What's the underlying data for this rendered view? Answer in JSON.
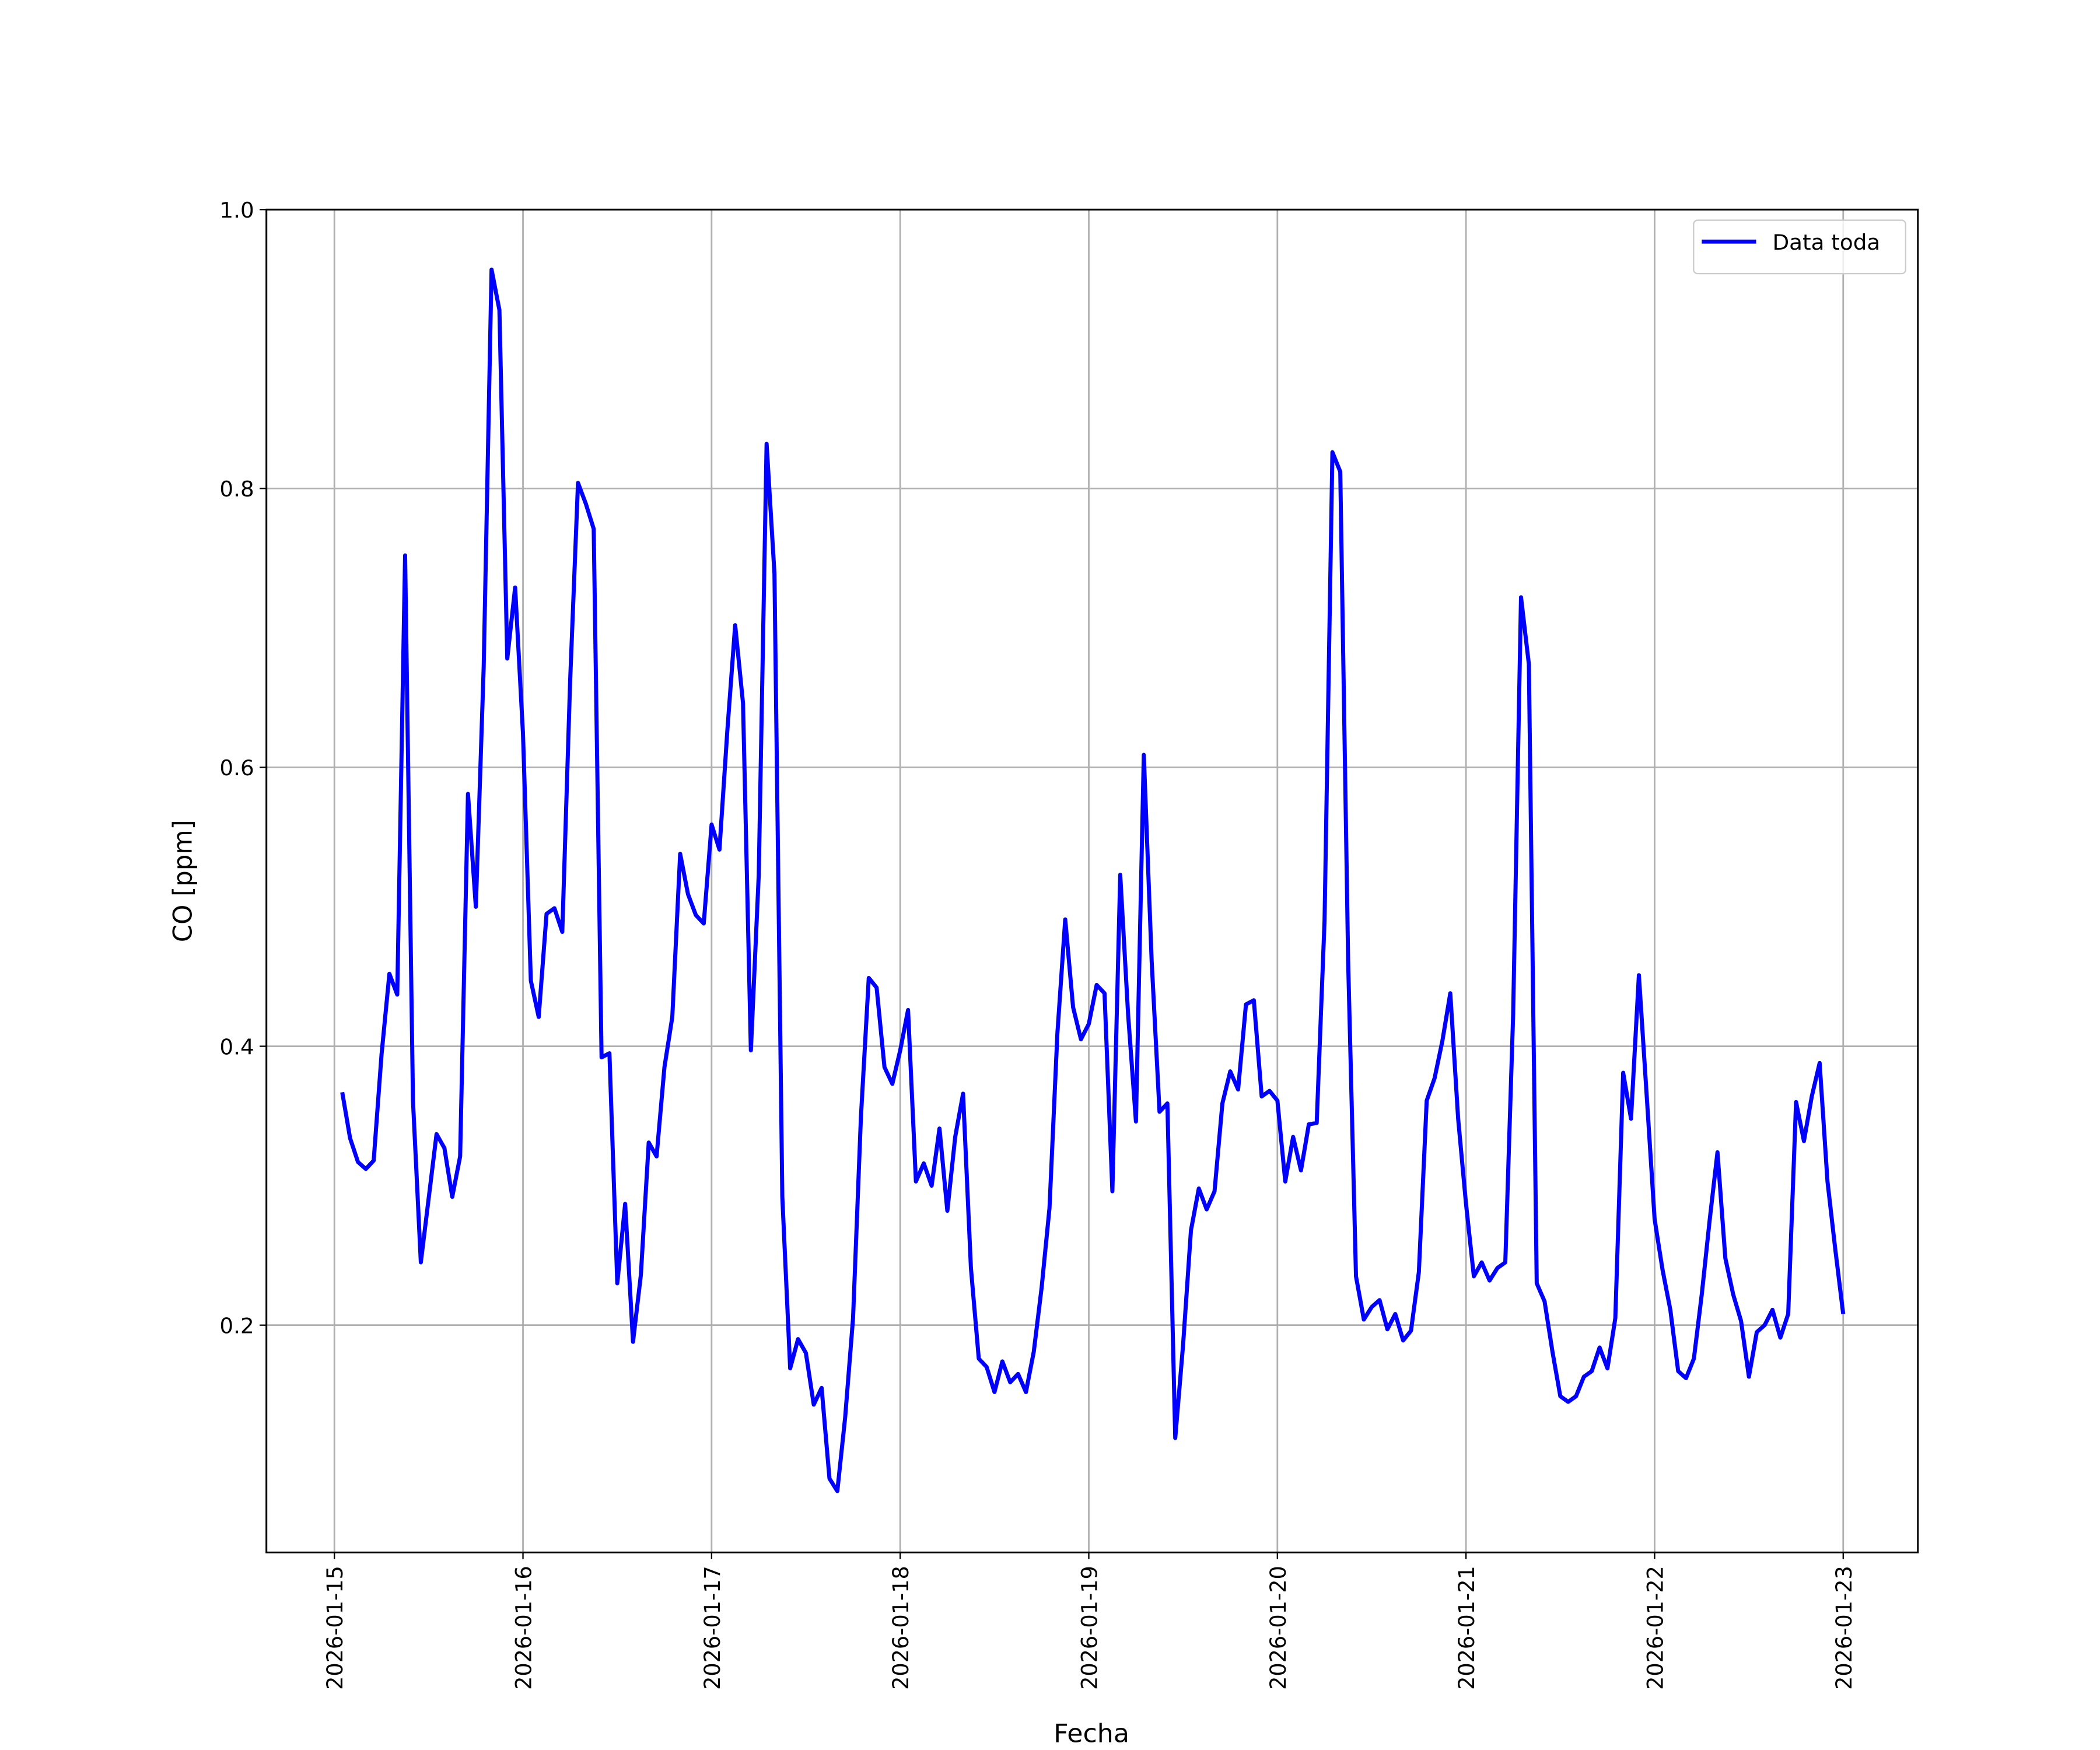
{
  "chart_data": {
    "type": "line",
    "xlabel": "Fecha",
    "ylabel": "CO [ppm]",
    "x": [
      "2026-01-15 01:00",
      "2026-01-15 02:00",
      "2026-01-15 03:00",
      "2026-01-15 04:00",
      "2026-01-15 05:00",
      "2026-01-15 06:00",
      "2026-01-15 07:00",
      "2026-01-15 08:00",
      "2026-01-15 09:00",
      "2026-01-15 10:00",
      "2026-01-15 11:00",
      "2026-01-15 12:00",
      "2026-01-15 13:00",
      "2026-01-15 14:00",
      "2026-01-15 15:00",
      "2026-01-15 16:00",
      "2026-01-15 17:00",
      "2026-01-15 18:00",
      "2026-01-15 19:00",
      "2026-01-15 20:00",
      "2026-01-15 21:00",
      "2026-01-15 22:00",
      "2026-01-15 23:00",
      "2026-01-16 00:00",
      "2026-01-16 01:00",
      "2026-01-16 02:00",
      "2026-01-16 03:00",
      "2026-01-16 04:00",
      "2026-01-16 05:00",
      "2026-01-16 06:00",
      "2026-01-16 07:00",
      "2026-01-16 08:00",
      "2026-01-16 09:00",
      "2026-01-16 10:00",
      "2026-01-16 11:00",
      "2026-01-16 12:00",
      "2026-01-16 13:00",
      "2026-01-16 14:00",
      "2026-01-16 15:00",
      "2026-01-16 16:00",
      "2026-01-16 17:00",
      "2026-01-16 18:00",
      "2026-01-16 19:00",
      "2026-01-16 20:00",
      "2026-01-16 21:00",
      "2026-01-16 22:00",
      "2026-01-16 23:00",
      "2026-01-17 00:00",
      "2026-01-17 01:00",
      "2026-01-17 02:00",
      "2026-01-17 03:00",
      "2026-01-17 04:00",
      "2026-01-17 05:00",
      "2026-01-17 06:00",
      "2026-01-17 07:00",
      "2026-01-17 08:00",
      "2026-01-17 09:00",
      "2026-01-17 10:00",
      "2026-01-17 11:00",
      "2026-01-17 12:00",
      "2026-01-17 13:00",
      "2026-01-17 14:00",
      "2026-01-17 15:00",
      "2026-01-17 16:00",
      "2026-01-17 17:00",
      "2026-01-17 18:00",
      "2026-01-17 19:00",
      "2026-01-17 20:00",
      "2026-01-17 21:00",
      "2026-01-17 22:00",
      "2026-01-17 23:00",
      "2026-01-18 00:00",
      "2026-01-18 01:00",
      "2026-01-18 02:00",
      "2026-01-18 03:00",
      "2026-01-18 04:00",
      "2026-01-18 05:00",
      "2026-01-18 06:00",
      "2026-01-18 07:00",
      "2026-01-18 08:00",
      "2026-01-18 09:00",
      "2026-01-18 10:00",
      "2026-01-18 11:00",
      "2026-01-18 12:00",
      "2026-01-18 13:00",
      "2026-01-18 14:00",
      "2026-01-18 15:00",
      "2026-01-18 16:00",
      "2026-01-18 17:00",
      "2026-01-18 18:00",
      "2026-01-18 19:00",
      "2026-01-18 20:00",
      "2026-01-18 21:00",
      "2026-01-18 22:00",
      "2026-01-18 23:00",
      "2026-01-19 00:00",
      "2026-01-19 01:00",
      "2026-01-19 02:00",
      "2026-01-19 03:00",
      "2026-01-19 04:00",
      "2026-01-19 05:00",
      "2026-01-19 06:00",
      "2026-01-19 07:00",
      "2026-01-19 08:00",
      "2026-01-19 09:00",
      "2026-01-19 10:00",
      "2026-01-19 11:00",
      "2026-01-19 12:00",
      "2026-01-19 13:00",
      "2026-01-19 14:00",
      "2026-01-19 15:00",
      "2026-01-19 16:00",
      "2026-01-19 17:00",
      "2026-01-19 18:00",
      "2026-01-19 19:00",
      "2026-01-19 20:00",
      "2026-01-19 21:00",
      "2026-01-19 22:00",
      "2026-01-19 23:00",
      "2026-01-20 00:00",
      "2026-01-20 01:00",
      "2026-01-20 02:00",
      "2026-01-20 03:00",
      "2026-01-20 04:00",
      "2026-01-20 05:00",
      "2026-01-20 06:00",
      "2026-01-20 07:00",
      "2026-01-20 08:00",
      "2026-01-20 09:00",
      "2026-01-20 10:00",
      "2026-01-20 11:00",
      "2026-01-20 12:00",
      "2026-01-20 13:00",
      "2026-01-20 14:00",
      "2026-01-20 15:00",
      "2026-01-20 16:00",
      "2026-01-20 17:00",
      "2026-01-20 18:00",
      "2026-01-20 19:00",
      "2026-01-20 20:00",
      "2026-01-20 21:00",
      "2026-01-20 22:00",
      "2026-01-20 23:00",
      "2026-01-21 00:00",
      "2026-01-21 01:00",
      "2026-01-21 02:00",
      "2026-01-21 03:00",
      "2026-01-21 04:00",
      "2026-01-21 05:00",
      "2026-01-21 06:00",
      "2026-01-21 07:00",
      "2026-01-21 08:00",
      "2026-01-21 09:00",
      "2026-01-21 10:00",
      "2026-01-21 11:00",
      "2026-01-21 12:00",
      "2026-01-21 13:00",
      "2026-01-21 14:00",
      "2026-01-21 15:00",
      "2026-01-21 16:00",
      "2026-01-21 17:00",
      "2026-01-21 18:00",
      "2026-01-21 19:00",
      "2026-01-21 20:00",
      "2026-01-21 21:00",
      "2026-01-21 22:00",
      "2026-01-21 23:00",
      "2026-01-22 00:00",
      "2026-01-22 01:00",
      "2026-01-22 02:00",
      "2026-01-22 03:00",
      "2026-01-22 04:00",
      "2026-01-22 05:00",
      "2026-01-22 06:00",
      "2026-01-22 07:00",
      "2026-01-22 08:00",
      "2026-01-22 09:00",
      "2026-01-22 10:00",
      "2026-01-22 11:00",
      "2026-01-22 12:00",
      "2026-01-22 13:00",
      "2026-01-22 14:00",
      "2026-01-22 15:00",
      "2026-01-22 16:00",
      "2026-01-22 17:00",
      "2026-01-22 18:00",
      "2026-01-22 19:00",
      "2026-01-22 20:00",
      "2026-01-22 21:00",
      "2026-01-22 22:00",
      "2026-01-22 23:00",
      "2026-01-23 00:00"
    ],
    "series": [
      {
        "name": "Data toda",
        "color": "#0000ff",
        "values": [
          0.367,
          0.334,
          0.317,
          0.312,
          0.318,
          0.394,
          0.452,
          0.437,
          0.752,
          0.361,
          0.245,
          0.291,
          0.337,
          0.327,
          0.292,
          0.321,
          0.581,
          0.5,
          0.672,
          0.957,
          0.928,
          0.678,
          0.729,
          0.624,
          0.447,
          0.421,
          0.495,
          0.499,
          0.482,
          0.662,
          0.804,
          0.789,
          0.771,
          0.392,
          0.395,
          0.23,
          0.287,
          0.188,
          0.236,
          0.331,
          0.321,
          0.385,
          0.421,
          0.538,
          0.509,
          0.494,
          0.488,
          0.559,
          0.541,
          0.626,
          0.702,
          0.646,
          0.397,
          0.523,
          0.832,
          0.739,
          0.292,
          0.169,
          0.19,
          0.18,
          0.143,
          0.155,
          0.09,
          0.081,
          0.134,
          0.205,
          0.349,
          0.449,
          0.442,
          0.385,
          0.373,
          0.397,
          0.426,
          0.303,
          0.316,
          0.3,
          0.341,
          0.282,
          0.335,
          0.366,
          0.241,
          0.176,
          0.17,
          0.152,
          0.174,
          0.159,
          0.165,
          0.152,
          0.181,
          0.227,
          0.284,
          0.409,
          0.491,
          0.428,
          0.405,
          0.416,
          0.444,
          0.438,
          0.296,
          0.523,
          0.423,
          0.346,
          0.609,
          0.461,
          0.353,
          0.359,
          0.119,
          0.186,
          0.268,
          0.298,
          0.283,
          0.296,
          0.359,
          0.382,
          0.369,
          0.43,
          0.433,
          0.364,
          0.368,
          0.361,
          0.303,
          0.335,
          0.311,
          0.344,
          0.345,
          0.49,
          0.826,
          0.812,
          0.461,
          0.235,
          0.204,
          0.213,
          0.218,
          0.197,
          0.208,
          0.189,
          0.196,
          0.238,
          0.361,
          0.377,
          0.404,
          0.438,
          0.348,
          0.287,
          0.235,
          0.245,
          0.232,
          0.241,
          0.245,
          0.423,
          0.722,
          0.674,
          0.23,
          0.217,
          0.181,
          0.149,
          0.145,
          0.149,
          0.163,
          0.167,
          0.184,
          0.169,
          0.205,
          0.381,
          0.348,
          0.451,
          0.364,
          0.276,
          0.24,
          0.211,
          0.167,
          0.162,
          0.176,
          0.222,
          0.275,
          0.324,
          0.248,
          0.222,
          0.203,
          0.163,
          0.195,
          0.2,
          0.211,
          0.191,
          0.208,
          0.36,
          0.332,
          0.364,
          0.388,
          0.303,
          0.254,
          0.208
        ]
      }
    ],
    "xlim": [
      "2026-01-14 15:21",
      "2026-01-23 09:30"
    ],
    "xticks": [
      "2026-01-15",
      "2026-01-16",
      "2026-01-17",
      "2026-01-18",
      "2026-01-19",
      "2026-01-20",
      "2026-01-21",
      "2026-01-22",
      "2026-01-23"
    ],
    "ylim": [
      0.037,
      1.0
    ],
    "yticks": [
      0.2,
      0.4,
      0.6,
      0.8,
      1.0
    ],
    "grid": true,
    "legend": "upper right"
  }
}
